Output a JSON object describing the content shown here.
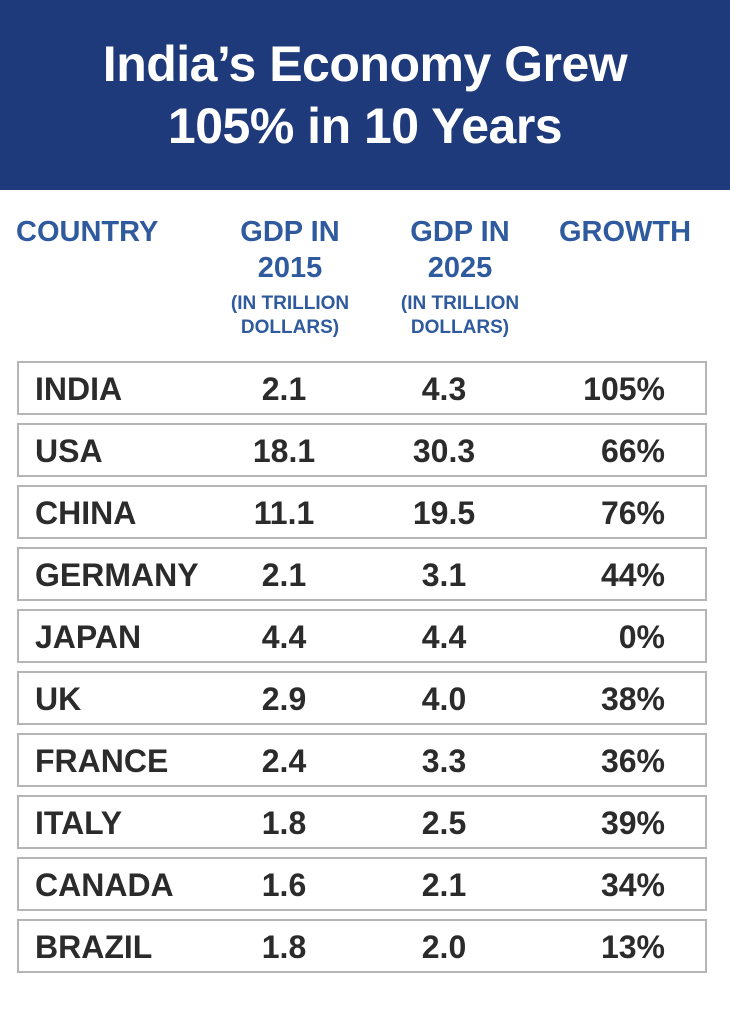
{
  "title": {
    "line1": "India’s Economy Grew",
    "line2": "105% in 10 Years"
  },
  "columns": {
    "country": "COUNTRY",
    "gdp2015": {
      "main_line1": "GDP IN",
      "main_line2": "2015",
      "sub_line1": "(IN TRILLION",
      "sub_line2": "DOLLARS)"
    },
    "gdp2025": {
      "main_line1": "GDP IN",
      "main_line2": "2025",
      "sub_line1": "(IN TRILLION",
      "sub_line2": "DOLLARS)"
    },
    "growth": "GROWTH"
  },
  "colors": {
    "banner": "#1f3a7a",
    "header_text": "#2f5a9e",
    "body_text": "#2b2b2b",
    "row_border": "#b5b5b5"
  },
  "chart_data": {
    "type": "table",
    "title": "India’s Economy Grew 105% in 10 Years",
    "columns": [
      "COUNTRY",
      "GDP IN 2015 (IN TRILLION DOLLARS)",
      "GDP IN 2025 (IN TRILLION DOLLARS)",
      "GROWTH"
    ],
    "rows": [
      {
        "country": "INDIA",
        "gdp2015": "2.1",
        "gdp2025": "4.3",
        "growth": "105%"
      },
      {
        "country": "USA",
        "gdp2015": "18.1",
        "gdp2025": "30.3",
        "growth": "66%"
      },
      {
        "country": "CHINA",
        "gdp2015": "11.1",
        "gdp2025": "19.5",
        "growth": "76%"
      },
      {
        "country": "GERMANY",
        "gdp2015": "2.1",
        "gdp2025": "3.1",
        "growth": "44%"
      },
      {
        "country": "JAPAN",
        "gdp2015": "4.4",
        "gdp2025": "4.4",
        "growth": "0%"
      },
      {
        "country": "UK",
        "gdp2015": "2.9",
        "gdp2025": "4.0",
        "growth": "38%"
      },
      {
        "country": "FRANCE",
        "gdp2015": "2.4",
        "gdp2025": "3.3",
        "growth": "36%"
      },
      {
        "country": "ITALY",
        "gdp2015": "1.8",
        "gdp2025": "2.5",
        "growth": "39%"
      },
      {
        "country": "CANADA",
        "gdp2015": "1.6",
        "gdp2025": "2.1",
        "growth": "34%"
      },
      {
        "country": "BRAZIL",
        "gdp2015": "1.8",
        "gdp2025": "2.0",
        "growth": "13%"
      }
    ]
  }
}
